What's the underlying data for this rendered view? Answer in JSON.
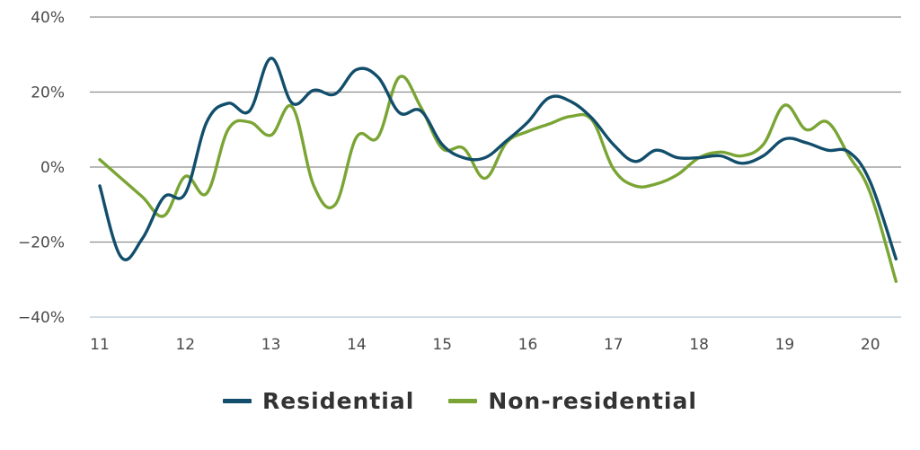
{
  "chart_data": {
    "type": "line",
    "title": "",
    "xlabel": "",
    "ylabel": "",
    "x_ticks": [
      "11",
      "12",
      "13",
      "14",
      "15",
      "16",
      "17",
      "18",
      "19",
      "20"
    ],
    "y_ticks": [
      "40%",
      "20%",
      "0%",
      "−20%",
      "−40%"
    ],
    "y_tick_values": [
      40,
      20,
      0,
      -20,
      -40
    ],
    "ylim": [
      -40,
      40
    ],
    "xlim": [
      11,
      20.4
    ],
    "grid": true,
    "legend_position": "bottom",
    "series": [
      {
        "name": "Residential",
        "color": "#124e6b",
        "x": [
          11.0,
          11.25,
          11.5,
          11.75,
          12.0,
          12.25,
          12.5,
          12.75,
          13.0,
          13.25,
          13.5,
          13.75,
          14.0,
          14.25,
          14.5,
          14.75,
          15.0,
          15.25,
          15.5,
          15.75,
          16.0,
          16.25,
          16.5,
          16.75,
          17.0,
          17.25,
          17.5,
          17.75,
          18.0,
          18.25,
          18.5,
          18.75,
          19.0,
          19.25,
          19.5,
          19.75,
          20.0,
          20.3
        ],
        "values": [
          -5,
          -24,
          -19,
          -8,
          -7,
          12,
          17,
          15,
          29,
          17,
          20.5,
          19.5,
          26,
          24,
          14.5,
          15,
          6,
          2.5,
          2.5,
          7,
          12,
          18.5,
          17.5,
          13,
          6,
          1.5,
          4.5,
          2.5,
          2.5,
          3,
          1,
          3,
          7.5,
          6.5,
          4.5,
          4,
          -4,
          -24.5
        ]
      },
      {
        "name": "Non-residential",
        "color": "#7aa534",
        "x": [
          11.0,
          11.25,
          11.5,
          11.75,
          12.0,
          12.25,
          12.5,
          12.75,
          13.0,
          13.25,
          13.5,
          13.75,
          14.0,
          14.25,
          14.5,
          14.75,
          15.0,
          15.25,
          15.5,
          15.75,
          16.0,
          16.25,
          16.5,
          16.75,
          17.0,
          17.25,
          17.5,
          17.75,
          18.0,
          18.25,
          18.5,
          18.75,
          19.0,
          19.25,
          19.5,
          19.75,
          20.0,
          20.3
        ],
        "values": [
          2,
          -3,
          -8,
          -13,
          -2.5,
          -7,
          10,
          12,
          8.5,
          16,
          -5,
          -10,
          8,
          8,
          24,
          16,
          5,
          5,
          -3,
          6.5,
          9.5,
          11.5,
          13.5,
          12.5,
          -0.5,
          -5,
          -4.5,
          -2,
          2.5,
          4,
          3,
          6,
          16.5,
          10,
          12,
          3,
          -7,
          -30.5
        ]
      }
    ]
  }
}
